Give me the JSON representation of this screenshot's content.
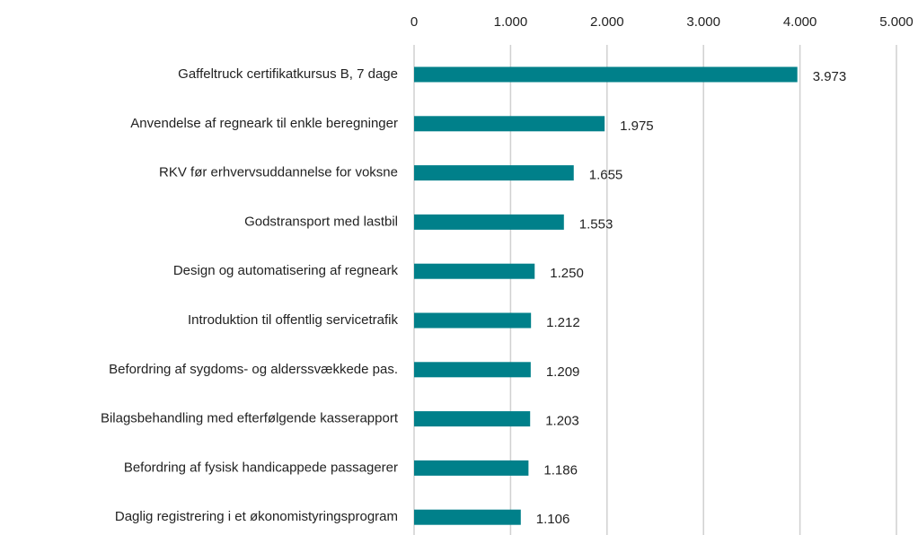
{
  "chart_data": {
    "type": "bar",
    "orientation": "horizontal",
    "categories": [
      "Gaffeltruck certifikatkursus B, 7 dage",
      "Anvendelse af regneark til enkle beregninger",
      "RKV før erhvervsuddannelse for voksne",
      "Godstransport med lastbil",
      "Design og automatisering af regneark",
      "Introduktion til offentlig servicetrafik",
      "Befordring af sygdoms- og alderssvækkede pas.",
      "Bilagsbehandling med efterfølgende kasserapport",
      "Befordring af fysisk handicappede passagerer",
      "Daglig registrering i et økonomistyringsprogram"
    ],
    "values": [
      3973,
      1975,
      1655,
      1553,
      1250,
      1212,
      1209,
      1203,
      1186,
      1106
    ],
    "value_labels": [
      "3.973",
      "1.975",
      "1.655",
      "1.553",
      "1.250",
      "1.212",
      "1.209",
      "1.203",
      "1.186",
      "1.106"
    ],
    "color": "#00808a",
    "xlim": [
      0,
      5000
    ],
    "xticks": [
      0,
      {
        "value": 1000,
        "label": "1.000"
      },
      {
        "value": 2000,
        "label": "2.000"
      },
      {
        "value": 3000,
        "label": "3.000"
      },
      {
        "value": 4000,
        "label": "4.000"
      },
      {
        "value": 5000,
        "label": "5.000"
      }
    ],
    "grid": true
  }
}
